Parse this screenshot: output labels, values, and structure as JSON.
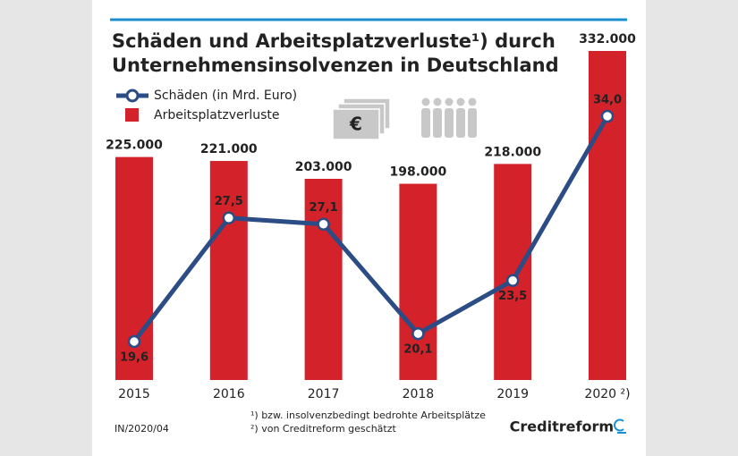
{
  "chart_data": {
    "type": "bar",
    "title_lines": [
      "Schäden und Arbeitsplatzverluste¹) durch",
      "Unternehmensinsolvenzen in Deutschland"
    ],
    "categories": [
      "2015",
      "2016",
      "2017",
      "2018",
      "2019",
      "2020 ²)"
    ],
    "series": [
      {
        "name": "Schäden (in Mrd. Euro)",
        "type": "line",
        "axis": "y2",
        "color": "#2b4c84",
        "values": [
          19.6,
          27.5,
          27.1,
          20.1,
          23.5,
          34.0
        ],
        "value_labels": [
          "19,6",
          "27,5",
          "27,1",
          "20,1",
          "23,5",
          "34,0"
        ]
      },
      {
        "name": "Arbeitsplatzverluste",
        "type": "bar",
        "color": "#d3222a",
        "values": [
          225000,
          221000,
          203000,
          198000,
          218000,
          332000
        ],
        "value_labels": [
          "225.000",
          "221.000",
          "203.000",
          "198.000",
          "218.000",
          "332.000"
        ]
      }
    ],
    "ylim": [
      0,
      332000
    ],
    "y2lim": [
      17.14,
      38.17
    ],
    "footnotes": [
      "¹) bzw. insolvenzbedingt bedrohte Arbeitsplätze",
      "²) von Creditreform geschätzt"
    ],
    "source": "IN/2020/04",
    "brand": "Creditreform"
  }
}
